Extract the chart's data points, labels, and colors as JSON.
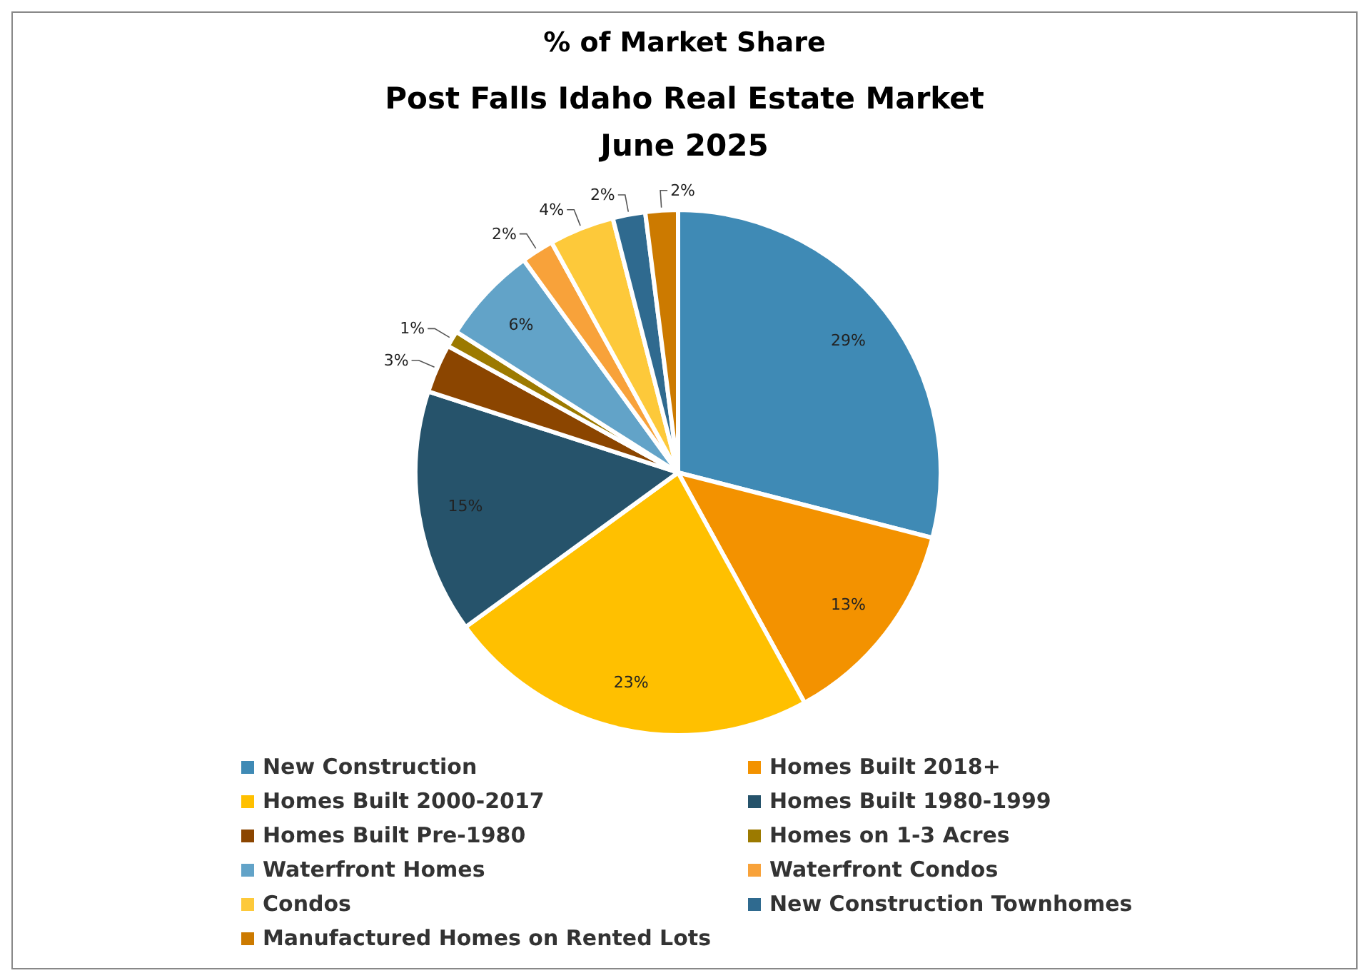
{
  "chart_data": {
    "type": "pie",
    "title": "% of Market Share",
    "subtitle": "Post Falls Idaho Real Estate Market\nJune 2025",
    "categories": [
      "New Construction",
      "Homes Built 2018+",
      "Homes Built 2000-2017",
      "Homes Built 1980-1999",
      "Homes Built Pre-1980",
      "Homes on 1-3 Acres",
      "Waterfront Homes",
      "Waterfront Condos",
      "Condos",
      "New Construction Townhomes",
      "Manufactured Homes on Rented Lots"
    ],
    "values": [
      29,
      13,
      23,
      15,
      3,
      1,
      6,
      2,
      4,
      2,
      2
    ],
    "value_labels": [
      "29%",
      "13%",
      "23%",
      "15%",
      "3%",
      "1%",
      "6%",
      "2%",
      "4%",
      "2%",
      "2%"
    ],
    "colors": [
      "#3f8ab5",
      "#f39200",
      "#ffc000",
      "#26536b",
      "#8b4500",
      "#9c7a00",
      "#62a3c8",
      "#f8a23a",
      "#fdc93a",
      "#2f6a8f",
      "#cc7a00"
    ],
    "legend": "bottom"
  }
}
